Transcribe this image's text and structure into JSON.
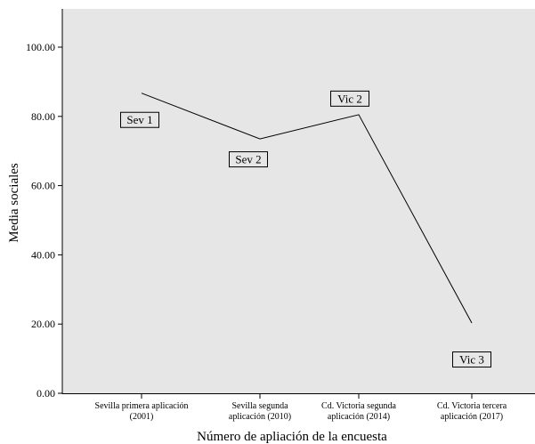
{
  "chart_data": {
    "type": "line",
    "title": "",
    "xlabel": "Número de apliación de la encuesta",
    "ylabel": "Media sociales",
    "categories": [
      [
        "Sevilla primera aplicación",
        "(2001)"
      ],
      [
        "Sevilla segunda",
        "aplicación (2010)"
      ],
      [
        "Cd. Victoria segunda",
        "aplicación (2014)"
      ],
      [
        "Cd. Victoria tercera",
        "aplicación (2017)"
      ]
    ],
    "series": [
      {
        "values": [
          86.7,
          73.5,
          80.5,
          20.3
        ]
      }
    ],
    "point_labels": [
      "Sev 1",
      "Sev 2",
      "Vic 2",
      "Vic 3"
    ],
    "yticks": [
      "0.00",
      "20.00",
      "40.00",
      "60.00",
      "80.00",
      "100.00"
    ],
    "ylim": [
      0,
      110
    ],
    "grid": false,
    "colors": {
      "plot_background": "#e6e6e6",
      "line": "#000000",
      "label_box": "#e6e6e6"
    }
  }
}
